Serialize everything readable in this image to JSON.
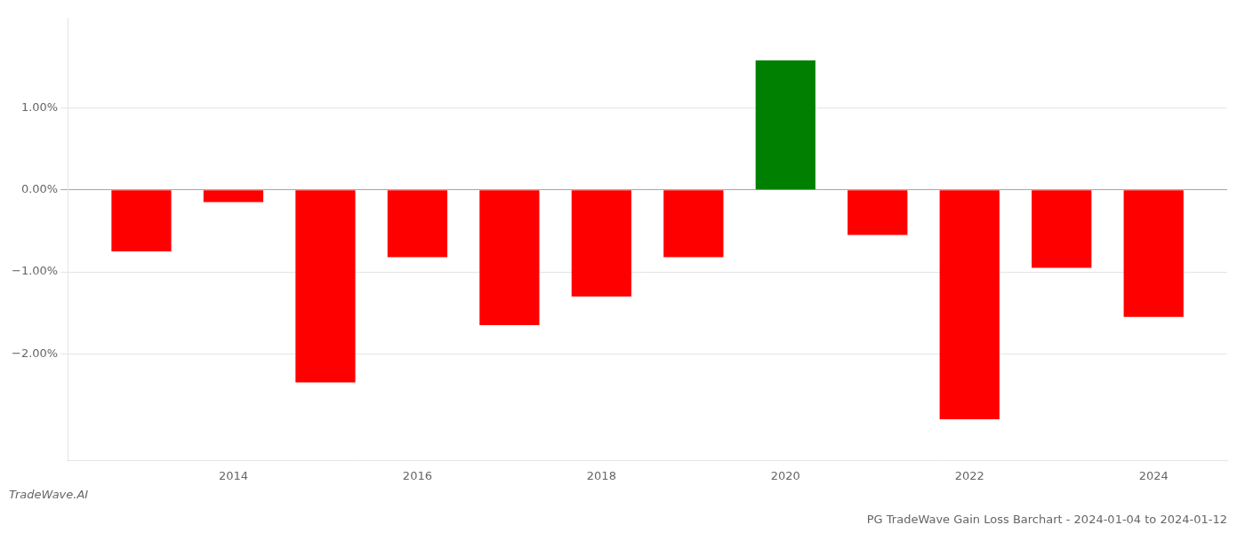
{
  "chart_data": {
    "type": "bar",
    "title": "PG TradeWave Gain Loss Barchart - 2024-01-04 to 2024-01-12",
    "annotations": [
      "TradeWave.AI"
    ],
    "x": [
      2013,
      2014,
      2015,
      2016,
      2017,
      2018,
      2019,
      2020,
      2021,
      2022,
      2023,
      2024
    ],
    "values": [
      -0.75,
      -0.15,
      -2.35,
      -0.82,
      -1.65,
      -1.3,
      -0.82,
      1.58,
      -0.55,
      -2.8,
      -0.95,
      -1.55
    ],
    "colors": [
      "#ff0000",
      "#ff0000",
      "#ff0000",
      "#ff0000",
      "#ff0000",
      "#ff0000",
      "#ff0000",
      "#008000",
      "#ff0000",
      "#ff0000",
      "#ff0000",
      "#ff0000"
    ],
    "xlim": [
      2012.2,
      2024.8
    ],
    "xticks": [
      2014,
      2016,
      2018,
      2020,
      2022,
      2024
    ],
    "ylim": [
      -3.3,
      2.1
    ],
    "yticks": [
      {
        "value": -2.0,
        "label": "−2.00%"
      },
      {
        "value": -1.0,
        "label": "−1.00%"
      },
      {
        "value": 0.0,
        "label": "0.00%"
      },
      {
        "value": 1.0,
        "label": "1.00%"
      }
    ],
    "grid": "y"
  }
}
